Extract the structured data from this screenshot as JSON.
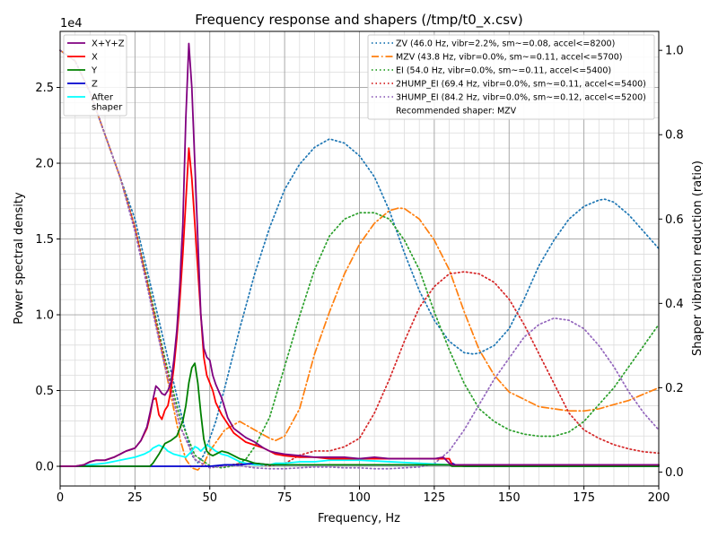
{
  "chart_data": {
    "type": "line",
    "title": "Frequency response and shapers (/tmp/t0_x.csv)",
    "xlabel": "Frequency, Hz",
    "ylabel": "Power spectral density",
    "ylabel_right": "Shaper vibration reduction (ratio)",
    "y_multiplier": "1e4",
    "xlim": [
      0,
      200
    ],
    "ylim": [
      -0.13,
      2.87
    ],
    "ylim_right": [
      -0.033,
      1.045
    ],
    "x_ticks": [
      0,
      25,
      50,
      75,
      100,
      125,
      150,
      175,
      200
    ],
    "x_tick_labels": [
      "0",
      "25",
      "50",
      "75",
      "100",
      "125",
      "150",
      "175",
      "200"
    ],
    "y_ticks": [
      0,
      0.5,
      1.0,
      1.5,
      2.0,
      2.5
    ],
    "y_tick_labels": [
      "0.0",
      "0.5",
      "1.0",
      "1.5",
      "2.0",
      "2.5"
    ],
    "y_ticks_right": [
      0,
      0.2,
      0.4,
      0.6,
      0.8,
      1.0
    ],
    "y_tick_labels_right": [
      "0.0",
      "0.2",
      "0.4",
      "0.6",
      "0.8",
      "1.0"
    ],
    "grid": true,
    "legend_left_placement": "top-left",
    "legend_right_placement": "top-right",
    "series": [
      {
        "name": "X+Y+Z",
        "color": "#800080",
        "axis": "left",
        "x": [
          0,
          5,
          8,
          10,
          12,
          15,
          18,
          20,
          22,
          25,
          27,
          29,
          31,
          32,
          33,
          34,
          35,
          36,
          37,
          38,
          39,
          40,
          41,
          42,
          43,
          44,
          45,
          46,
          47,
          48,
          49,
          50,
          51,
          52,
          54,
          56,
          58,
          60,
          62,
          65,
          68,
          70,
          72,
          75,
          80,
          85,
          90,
          95,
          100,
          105,
          110,
          115,
          120,
          125,
          128,
          130,
          131,
          132,
          133,
          135,
          140,
          145,
          150,
          155,
          160,
          165,
          170,
          175,
          180,
          185,
          190,
          195,
          200
        ],
        "y": [
          0,
          0,
          0.01,
          0.03,
          0.04,
          0.04,
          0.06,
          0.08,
          0.1,
          0.12,
          0.17,
          0.26,
          0.44,
          0.53,
          0.51,
          0.48,
          0.47,
          0.5,
          0.55,
          0.7,
          0.9,
          1.2,
          1.6,
          2.3,
          2.79,
          2.5,
          2.0,
          1.5,
          1.0,
          0.78,
          0.72,
          0.7,
          0.6,
          0.54,
          0.45,
          0.32,
          0.25,
          0.22,
          0.19,
          0.16,
          0.12,
          0.1,
          0.09,
          0.08,
          0.07,
          0.06,
          0.06,
          0.06,
          0.05,
          0.06,
          0.05,
          0.05,
          0.05,
          0.05,
          0.06,
          0.02,
          0.01,
          0.01,
          0.01,
          0.01,
          0.01,
          0.01,
          0.01,
          0.01,
          0.01,
          0.01,
          0.01,
          0.01,
          0.01,
          0.01,
          0.01,
          0.01,
          0.01
        ]
      },
      {
        "name": "X",
        "color": "#ff0000",
        "axis": "left",
        "x": [
          0,
          5,
          8,
          10,
          12,
          15,
          18,
          20,
          22,
          25,
          27,
          29,
          30,
          31,
          32,
          33,
          34,
          35,
          36,
          37,
          38,
          39,
          40,
          41,
          42,
          43,
          44,
          45,
          46,
          47,
          48,
          49,
          50,
          51,
          52,
          54,
          56,
          58,
          60,
          62,
          65,
          68,
          70,
          72,
          75,
          80,
          85,
          90,
          95,
          100,
          105,
          110,
          115,
          120,
          125,
          128,
          130,
          131,
          132,
          133,
          135,
          140,
          145,
          150,
          155,
          160,
          165,
          170,
          175,
          180,
          185,
          190,
          195,
          200
        ],
        "y": [
          0,
          0,
          0.01,
          0.03,
          0.04,
          0.04,
          0.06,
          0.08,
          0.1,
          0.12,
          0.17,
          0.25,
          0.33,
          0.44,
          0.45,
          0.34,
          0.31,
          0.37,
          0.4,
          0.5,
          0.65,
          0.85,
          1.1,
          1.4,
          1.75,
          2.1,
          1.9,
          1.6,
          1.3,
          1.0,
          0.72,
          0.6,
          0.55,
          0.5,
          0.42,
          0.34,
          0.28,
          0.22,
          0.19,
          0.16,
          0.14,
          0.12,
          0.1,
          0.08,
          0.07,
          0.06,
          0.06,
          0.05,
          0.05,
          0.05,
          0.05,
          0.05,
          0.05,
          0.05,
          0.05,
          0.05,
          0.05,
          0.01,
          0.01,
          0.01,
          0.01,
          0.01,
          0.01,
          0.01,
          0.01,
          0.01,
          0.01,
          0.01,
          0.01,
          0.01,
          0.01,
          0.01,
          0.01,
          0.01
        ]
      },
      {
        "name": "Y",
        "color": "#008000",
        "axis": "left",
        "x": [
          0,
          20,
          30,
          31,
          33,
          35,
          37,
          39,
          41,
          42,
          43,
          44,
          45,
          46,
          47,
          48,
          49,
          50,
          51,
          52,
          54,
          56,
          58,
          60,
          62,
          65,
          70,
          75,
          80,
          90,
          100,
          110,
          120,
          130,
          131,
          132,
          135,
          140,
          150,
          160,
          170,
          180,
          190,
          200
        ],
        "y": [
          0,
          0,
          0,
          0.02,
          0.08,
          0.15,
          0.17,
          0.2,
          0.3,
          0.4,
          0.55,
          0.65,
          0.68,
          0.55,
          0.35,
          0.18,
          0.1,
          0.08,
          0.07,
          0.08,
          0.1,
          0.09,
          0.07,
          0.05,
          0.04,
          0.02,
          0.01,
          0.01,
          0.01,
          0.01,
          0.01,
          0.01,
          0.01,
          0.01,
          0.0,
          0.0,
          0.0,
          0.0,
          0.0,
          0.0,
          0.0,
          0.0,
          0.0,
          0.0
        ]
      },
      {
        "name": "Z",
        "color": "#0000cd",
        "axis": "left",
        "x": [
          0,
          40,
          50,
          55,
          60,
          65,
          70,
          75,
          80,
          100,
          120,
          125,
          128,
          130,
          131,
          132,
          135,
          150,
          200
        ],
        "y": [
          0,
          0,
          0,
          0.01,
          0.01,
          0.02,
          0.01,
          0.01,
          0.01,
          0.01,
          0.01,
          0.01,
          0.01,
          0.01,
          0.02,
          0.01,
          0.0,
          0.0,
          0.0
        ]
      },
      {
        "name": "After\nshaper",
        "color": "#00ffff",
        "axis": "left",
        "x": [
          0,
          5,
          10,
          15,
          20,
          25,
          28,
          30,
          31,
          32,
          33,
          34,
          35,
          36,
          38,
          40,
          42,
          44,
          45,
          46,
          47,
          48,
          49,
          50,
          52,
          54,
          56,
          58,
          60,
          62,
          65,
          68,
          70,
          72,
          75,
          80,
          85,
          90,
          95,
          100,
          110,
          120,
          130,
          135,
          140,
          150,
          160,
          170,
          180,
          190,
          200
        ],
        "y": [
          0,
          0,
          0.01,
          0.02,
          0.04,
          0.06,
          0.08,
          0.1,
          0.12,
          0.13,
          0.14,
          0.13,
          0.12,
          0.1,
          0.08,
          0.07,
          0.06,
          0.1,
          0.13,
          0.12,
          0.1,
          0.12,
          0.14,
          0.13,
          0.1,
          0.08,
          0.07,
          0.05,
          0.03,
          0.02,
          0.01,
          0.01,
          0.01,
          0.02,
          0.02,
          0.03,
          0.03,
          0.04,
          0.04,
          0.04,
          0.03,
          0.02,
          0.01,
          0.0,
          0.0,
          0.0,
          0.0,
          0.0,
          0.0,
          0.0,
          0.0
        ]
      },
      {
        "name": "ZV (46.0 Hz, vibr=2.2%, sm~=0.08, accel<=8200)",
        "color": "#1f77b4",
        "dash": "dotted",
        "axis": "right",
        "x": [
          0,
          5,
          10,
          15,
          20,
          25,
          30,
          35,
          40,
          44,
          46,
          48,
          52,
          55,
          60,
          65,
          70,
          75,
          80,
          85,
          90,
          95,
          100,
          105,
          110,
          115,
          120,
          125,
          130,
          135,
          138,
          140,
          145,
          150,
          155,
          160,
          165,
          170,
          175,
          180,
          182,
          185,
          190,
          195,
          200
        ],
        "y": [
          1.0,
          0.975,
          0.9,
          0.8,
          0.7,
          0.6,
          0.45,
          0.3,
          0.15,
          0.04,
          0.022,
          0.04,
          0.12,
          0.2,
          0.34,
          0.47,
          0.58,
          0.67,
          0.73,
          0.77,
          0.79,
          0.78,
          0.75,
          0.7,
          0.62,
          0.52,
          0.43,
          0.36,
          0.31,
          0.283,
          0.28,
          0.282,
          0.3,
          0.34,
          0.41,
          0.49,
          0.55,
          0.6,
          0.63,
          0.645,
          0.647,
          0.64,
          0.61,
          0.57,
          0.53
        ]
      },
      {
        "name": "MZV (43.8 Hz, vibr=0.0%, sm~=0.11, accel<=5700)",
        "color": "#ff7f0e",
        "dash": "dashdot",
        "axis": "right",
        "x": [
          0,
          5,
          10,
          15,
          20,
          25,
          30,
          35,
          40,
          42,
          44,
          46,
          48,
          50,
          55,
          60,
          65,
          70,
          72,
          75,
          80,
          85,
          90,
          95,
          100,
          105,
          110,
          113,
          115,
          120,
          125,
          130,
          135,
          140,
          145,
          150,
          160,
          170,
          175,
          180,
          190,
          200
        ],
        "y": [
          1.0,
          0.975,
          0.9,
          0.8,
          0.7,
          0.58,
          0.42,
          0.25,
          0.08,
          0.03,
          0.01,
          0.005,
          0.02,
          0.05,
          0.1,
          0.12,
          0.1,
          0.08,
          0.075,
          0.085,
          0.15,
          0.28,
          0.38,
          0.47,
          0.54,
          0.59,
          0.62,
          0.626,
          0.625,
          0.6,
          0.55,
          0.48,
          0.38,
          0.29,
          0.23,
          0.19,
          0.155,
          0.145,
          0.145,
          0.15,
          0.17,
          0.2
        ]
      },
      {
        "name": "EI (54.0 Hz, vibr=0.0%, sm~=0.11, accel<=5400)",
        "color": "#2ca02c",
        "dash": "dotted",
        "axis": "right",
        "x": [
          0,
          5,
          10,
          15,
          20,
          25,
          30,
          35,
          40,
          45,
          50,
          54,
          58,
          62,
          65,
          70,
          75,
          80,
          85,
          90,
          95,
          100,
          105,
          110,
          115,
          120,
          125,
          130,
          135,
          140,
          145,
          150,
          155,
          160,
          165,
          170,
          175,
          180,
          185,
          190,
          195,
          200
        ],
        "y": [
          1.0,
          0.975,
          0.9,
          0.8,
          0.7,
          0.58,
          0.43,
          0.27,
          0.13,
          0.04,
          0.015,
          0.01,
          0.015,
          0.03,
          0.06,
          0.13,
          0.25,
          0.37,
          0.48,
          0.56,
          0.6,
          0.615,
          0.615,
          0.6,
          0.55,
          0.48,
          0.38,
          0.29,
          0.21,
          0.15,
          0.12,
          0.1,
          0.09,
          0.085,
          0.085,
          0.095,
          0.12,
          0.16,
          0.2,
          0.25,
          0.3,
          0.35
        ]
      },
      {
        "name": "2HUMP_EI (69.4 Hz, vibr=0.0%, sm~=0.11, accel<=5400)",
        "color": "#d62728",
        "dash": "dotted",
        "axis": "right",
        "x": [
          0,
          5,
          10,
          15,
          20,
          25,
          30,
          35,
          40,
          45,
          50,
          55,
          60,
          65,
          70,
          75,
          80,
          85,
          90,
          95,
          100,
          105,
          110,
          115,
          120,
          125,
          130,
          135,
          140,
          145,
          150,
          155,
          160,
          165,
          170,
          175,
          180,
          185,
          190,
          195,
          200
        ],
        "y": [
          1.0,
          0.975,
          0.9,
          0.8,
          0.7,
          0.58,
          0.42,
          0.26,
          0.11,
          0.03,
          0.01,
          0.015,
          0.02,
          0.018,
          0.015,
          0.02,
          0.04,
          0.05,
          0.05,
          0.06,
          0.08,
          0.14,
          0.22,
          0.31,
          0.39,
          0.44,
          0.47,
          0.475,
          0.47,
          0.45,
          0.41,
          0.35,
          0.28,
          0.21,
          0.14,
          0.1,
          0.08,
          0.065,
          0.055,
          0.048,
          0.045
        ]
      },
      {
        "name": "3HUMP_EI (84.2 Hz, vibr=0.0%, sm~=0.12, accel<=5200)",
        "color": "#9467bd",
        "dash": "dotted",
        "axis": "right",
        "x": [
          0,
          5,
          10,
          15,
          20,
          25,
          30,
          35,
          40,
          45,
          50,
          55,
          60,
          65,
          70,
          75,
          80,
          85,
          90,
          95,
          100,
          105,
          110,
          115,
          120,
          125,
          130,
          135,
          140,
          145,
          150,
          155,
          160,
          165,
          170,
          175,
          180,
          185,
          190,
          195,
          200
        ],
        "y": [
          1.0,
          0.975,
          0.9,
          0.8,
          0.7,
          0.57,
          0.41,
          0.25,
          0.11,
          0.03,
          0.01,
          0.015,
          0.015,
          0.01,
          0.008,
          0.008,
          0.01,
          0.012,
          0.012,
          0.01,
          0.01,
          0.008,
          0.008,
          0.01,
          0.012,
          0.02,
          0.05,
          0.1,
          0.16,
          0.22,
          0.27,
          0.32,
          0.35,
          0.365,
          0.36,
          0.34,
          0.3,
          0.25,
          0.19,
          0.14,
          0.1
        ]
      }
    ],
    "recommended_text": "Recommended shaper: MZV"
  }
}
